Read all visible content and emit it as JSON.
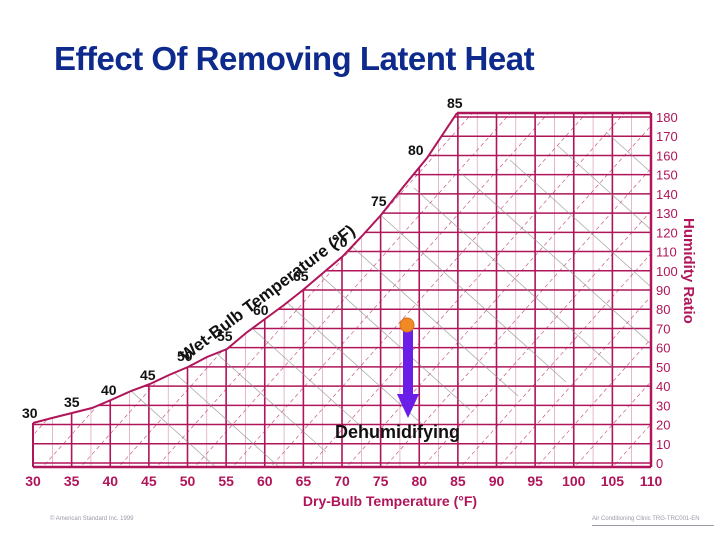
{
  "title": "Effect Of Removing Latent Heat",
  "footer": {
    "copyright": "© American Standard Inc. 1999",
    "course": "Air Conditioning Clinic TRG-TRC001-EN"
  },
  "colors": {
    "grid": "#b0155a",
    "title": "#0d2a8c",
    "arrow": "#6a1ee8",
    "point": "#f08a24",
    "label": "#111111"
  },
  "chart_data": {
    "type": "psychrometric",
    "title": "Effect Of Removing Latent Heat",
    "xlabel": "Dry-Bulb Temperature (°F)",
    "ylabel": "Humidity Ratio",
    "curve_label": "Wet-Bulb Temperature (°F)",
    "x_ticks": [
      30,
      35,
      40,
      45,
      50,
      55,
      60,
      65,
      70,
      75,
      80,
      85,
      90,
      95,
      100,
      105,
      110
    ],
    "y_ticks": [
      0,
      10,
      20,
      30,
      40,
      50,
      60,
      70,
      80,
      90,
      100,
      110,
      120,
      130,
      140,
      150,
      160,
      170,
      180
    ],
    "xlim": [
      30,
      110
    ],
    "ylim": [
      0,
      180
    ],
    "wet_bulb_labels": [
      30,
      35,
      40,
      45,
      50,
      55,
      60,
      65,
      70,
      75,
      80,
      85
    ],
    "process": {
      "label": "Dehumidifying",
      "start": {
        "dry_bulb": 80,
        "humidity_ratio": 75
      },
      "end": {
        "dry_bulb": 80,
        "humidity_ratio": 25
      },
      "direction": "down"
    }
  }
}
